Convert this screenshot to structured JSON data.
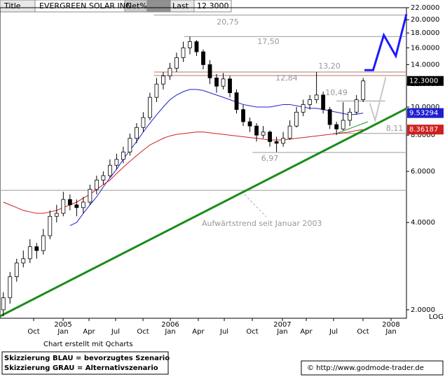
{
  "header": {
    "title": "Title",
    "name": "EVERGREEN SOLAR INC",
    "net": "Net%",
    "last_caption": "Last"
  },
  "chart_data": {
    "type": "candlestick",
    "last": {
      "value": 12.3,
      "label": "12.3000"
    },
    "log_scale": true,
    "log_label": "LOG",
    "ylim": [
      1.87,
      22.0
    ],
    "yticks": [
      {
        "value": 2,
        "label": "2.0000"
      },
      {
        "value": 4,
        "label": "4.0000"
      },
      {
        "value": 6,
        "label": "6.0000"
      },
      {
        "value": 8,
        "label": "8.0000"
      },
      {
        "value": 10,
        "label": "10.0000"
      },
      {
        "value": 12,
        "label": "12.0000"
      },
      {
        "value": 14,
        "label": "14.0000"
      },
      {
        "value": 16,
        "label": "16.0000"
      },
      {
        "value": 18,
        "label": "18.0000"
      },
      {
        "value": 20,
        "label": "20.0000"
      },
      {
        "value": 22,
        "label": "22.0000"
      }
    ],
    "xlim": [
      -0.5,
      60.5
    ],
    "xticks": [
      {
        "value": 4.55,
        "label": "Oct"
      },
      {
        "value": 8.97,
        "label": "Jan",
        "year": "2005"
      },
      {
        "value": 12.86,
        "label": "Apr"
      },
      {
        "value": 16.85,
        "label": "Jul"
      },
      {
        "value": 20.96,
        "label": "Oct"
      },
      {
        "value": 25.06,
        "label": "Jan",
        "year": "2006"
      },
      {
        "value": 29.26,
        "label": "Apr"
      },
      {
        "value": 33.16,
        "label": "Jul"
      },
      {
        "value": 37.36,
        "label": "Oct"
      },
      {
        "value": 41.88,
        "label": "Jan",
        "year": "2007"
      },
      {
        "value": 45.46,
        "label": "Apr"
      },
      {
        "value": 49.56,
        "label": "Jul"
      },
      {
        "value": 53.98,
        "label": "Oct"
      },
      {
        "value": 58.19,
        "label": "Jan",
        "year": "2008"
      }
    ],
    "series": [
      {
        "type": "candlestick",
        "ohlc": [
          [
            2.0,
            2.3,
            1.9,
            2.2
          ],
          [
            2.2,
            2.7,
            2.1,
            2.6
          ],
          [
            2.6,
            3.0,
            2.5,
            2.9
          ],
          [
            2.9,
            3.2,
            2.8,
            3.0
          ],
          [
            3.0,
            3.5,
            2.9,
            3.3
          ],
          [
            3.3,
            3.4,
            3.0,
            3.2
          ],
          [
            3.2,
            3.8,
            3.1,
            3.6
          ],
          [
            3.6,
            4.4,
            3.5,
            4.2
          ],
          [
            4.2,
            4.6,
            4.0,
            4.3
          ],
          [
            4.3,
            5.1,
            4.2,
            4.8
          ],
          [
            4.8,
            5.0,
            4.4,
            4.6
          ],
          [
            4.6,
            4.8,
            4.2,
            4.5
          ],
          [
            4.5,
            4.9,
            4.3,
            4.7
          ],
          [
            4.7,
            5.4,
            4.6,
            5.2
          ],
          [
            5.2,
            5.8,
            5.0,
            5.6
          ],
          [
            5.6,
            6.0,
            5.4,
            5.8
          ],
          [
            5.8,
            6.6,
            5.7,
            6.3
          ],
          [
            6.3,
            6.9,
            6.1,
            6.6
          ],
          [
            6.6,
            7.3,
            6.4,
            7.0
          ],
          [
            7.0,
            8.1,
            6.8,
            7.8
          ],
          [
            7.8,
            8.8,
            7.5,
            8.5
          ],
          [
            8.5,
            9.6,
            8.2,
            9.2
          ],
          [
            9.2,
            11.2,
            9.0,
            10.8
          ],
          [
            10.8,
            12.6,
            10.4,
            12.0
          ],
          [
            12.0,
            13.2,
            11.5,
            12.8
          ],
          [
            12.8,
            14.2,
            12.4,
            13.6
          ],
          [
            13.6,
            15.4,
            13.2,
            14.8
          ],
          [
            14.8,
            16.8,
            14.3,
            16.0
          ],
          [
            16.0,
            17.5,
            15.2,
            16.8
          ],
          [
            16.8,
            17.0,
            15.0,
            15.5
          ],
          [
            15.5,
            15.8,
            13.5,
            14.0
          ],
          [
            14.0,
            14.5,
            12.0,
            12.6
          ],
          [
            12.6,
            13.0,
            11.2,
            11.8
          ],
          [
            11.8,
            13.1,
            11.5,
            12.5
          ],
          [
            12.5,
            12.8,
            10.8,
            11.2
          ],
          [
            11.2,
            11.5,
            9.5,
            9.8
          ],
          [
            9.8,
            10.2,
            8.6,
            8.9
          ],
          [
            8.9,
            9.2,
            8.2,
            8.6
          ],
          [
            8.6,
            8.8,
            7.6,
            8.0
          ],
          [
            8.0,
            8.6,
            7.8,
            8.2
          ],
          [
            8.2,
            8.3,
            7.3,
            7.6
          ],
          [
            7.6,
            7.9,
            7.0,
            7.5
          ],
          [
            7.5,
            8.2,
            7.3,
            7.8
          ],
          [
            7.8,
            9.0,
            7.7,
            8.6
          ],
          [
            8.6,
            10.0,
            8.5,
            9.6
          ],
          [
            9.6,
            10.6,
            9.3,
            10.2
          ],
          [
            10.2,
            11.0,
            9.8,
            10.6
          ],
          [
            10.6,
            13.2,
            10.3,
            11.0
          ],
          [
            11.0,
            11.3,
            9.5,
            9.8
          ],
          [
            9.8,
            10.0,
            8.4,
            8.7
          ],
          [
            8.7,
            8.9,
            8.0,
            8.4
          ],
          [
            8.4,
            10.4,
            8.3,
            9.0
          ],
          [
            9.0,
            9.9,
            8.6,
            9.6
          ],
          [
            9.6,
            11.0,
            9.4,
            10.6
          ],
          [
            10.6,
            12.6,
            10.4,
            12.3
          ]
        ]
      },
      {
        "type": "line",
        "color": "#1f1fd0",
        "values": [
          null,
          null,
          null,
          null,
          null,
          null,
          null,
          null,
          null,
          null,
          3.9,
          4.0,
          4.3,
          4.6,
          4.9,
          5.3,
          5.7,
          6.1,
          6.6,
          7.1,
          7.6,
          8.2,
          8.8,
          9.4,
          10.0,
          10.6,
          11.0,
          11.3,
          11.5,
          11.5,
          11.4,
          11.2,
          11.0,
          10.8,
          10.6,
          10.4,
          10.2,
          10.1,
          10.0,
          10.0,
          10.0,
          10.1,
          10.2,
          10.2,
          10.1,
          10.0,
          9.9,
          9.9,
          9.8,
          9.7,
          9.6,
          9.5,
          9.4,
          9.45,
          9.53294
        ]
      },
      {
        "type": "line",
        "color": "#d01f1f",
        "values": [
          4.7,
          4.6,
          4.5,
          4.4,
          4.35,
          4.3,
          4.3,
          4.35,
          4.4,
          4.5,
          4.6,
          4.7,
          4.85,
          5.0,
          5.2,
          5.4,
          5.6,
          5.9,
          6.2,
          6.5,
          6.8,
          7.1,
          7.4,
          7.6,
          7.8,
          7.95,
          8.05,
          8.1,
          8.15,
          8.2,
          8.2,
          8.15,
          8.1,
          8.05,
          8.0,
          7.95,
          7.9,
          7.85,
          7.8,
          7.75,
          7.7,
          7.7,
          7.7,
          7.75,
          7.8,
          7.85,
          7.9,
          7.95,
          8.0,
          8.05,
          8.1,
          8.15,
          8.2,
          8.3,
          8.36187
        ]
      }
    ],
    "levels": [
      {
        "value": 20.75,
        "label": "20,75"
      },
      {
        "value": 17.5,
        "label": "17,50"
      },
      {
        "value": 13.2,
        "label": "13,20"
      },
      {
        "value": 12.84,
        "label": "12,84"
      },
      {
        "value": 10.49,
        "label": "10,49"
      },
      {
        "value": 8.11,
        "label": "8,11"
      },
      {
        "value": 6.97,
        "label": "6,97"
      },
      {
        "value": 5.16
      }
    ],
    "drawings": [
      {
        "color": "#1a8c1a",
        "points": [
          [
            -0.5,
            1.9
          ],
          [
            60.5,
            9.88
          ]
        ]
      },
      {
        "color": "#1a8c1a",
        "points": [
          [
            50.0,
            8.1
          ],
          [
            54.7,
            8.9
          ]
        ]
      },
      {
        "color": "#1a1aff",
        "points": [
          [
            54.2,
            13.4
          ],
          [
            55.5,
            13.4
          ],
          [
            57.1,
            17.7
          ],
          [
            58.9,
            15.0
          ],
          [
            60.5,
            20.9
          ]
        ]
      },
      {
        "color": "#c8c8c8",
        "points": [
          [
            55.0,
            10.3
          ],
          [
            55.8,
            9.0
          ],
          [
            57.4,
            12.7
          ]
        ]
      }
    ],
    "annotation": "Aufwärtstrend seit Januar 2003",
    "credit": "Chart erstellt mit Qcharts"
  },
  "footer": {
    "legend_blue": "Skizzierung BLAU = bevorzugtes Szenario",
    "legend_gray": "Skizzierung GRAU = Alternativszenario",
    "source": "© http://www.godmode-trader.de"
  }
}
